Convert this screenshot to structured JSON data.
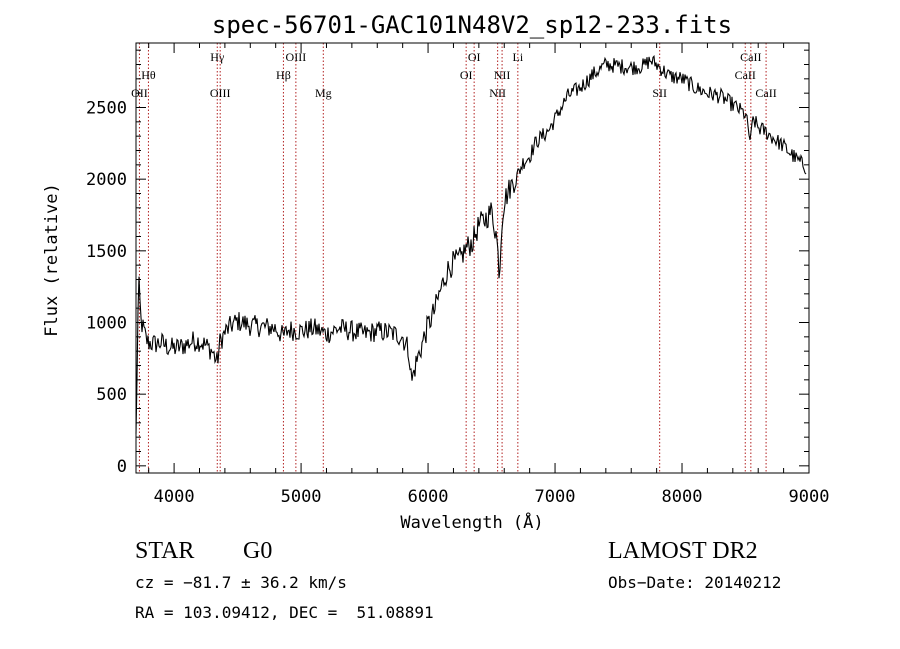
{
  "chart_data": {
    "type": "line",
    "title": "spec-56701-GAC101N48V2_sp12-233.fits",
    "xlabel": "Wavelength (Å)",
    "ylabel": "Flux (relative)",
    "xlim": [
      3700,
      9000
    ],
    "ylim": [
      -50,
      2950
    ],
    "x_ticks": [
      4000,
      5000,
      6000,
      7000,
      8000,
      9000
    ],
    "y_ticks": [
      0,
      500,
      1000,
      1500,
      2000,
      2500
    ],
    "grid": false,
    "series": [
      {
        "x": [
          3700,
          3720,
          3740,
          3760,
          3780,
          3800,
          3850,
          3900,
          3950,
          4000,
          4050,
          4100,
          4150,
          4200,
          4250,
          4300,
          4340,
          4360,
          4400,
          4450,
          4500,
          4600,
          4700,
          4800,
          4861,
          4900,
          5000,
          5100,
          5200,
          5300,
          5400,
          5500,
          5600,
          5700,
          5800,
          5850,
          5870,
          5900,
          5950,
          6000,
          6050,
          6100,
          6150,
          6200,
          6250,
          6300,
          6350,
          6400,
          6450,
          6500,
          6540,
          6563,
          6580,
          6600,
          6650,
          6700,
          6750,
          6800,
          6850,
          6900,
          6950,
          7000,
          7100,
          7200,
          7300,
          7400,
          7500,
          7600,
          7700,
          7750,
          7800,
          7850,
          7900,
          8000,
          8100,
          8200,
          8300,
          8400,
          8500,
          8540,
          8560,
          8600,
          8660,
          8700,
          8800,
          8900,
          8980
        ],
        "values": [
          200,
          1300,
          1000,
          950,
          880,
          860,
          850,
          860,
          830,
          820,
          830,
          850,
          870,
          870,
          840,
          800,
          720,
          860,
          930,
          980,
          1010,
          980,
          970,
          960,
          900,
          950,
          940,
          960,
          920,
          960,
          940,
          920,
          940,
          930,
          900,
          800,
          580,
          700,
          840,
          980,
          1080,
          1230,
          1360,
          1420,
          1440,
          1520,
          1560,
          1680,
          1720,
          1780,
          1600,
          1330,
          1700,
          1850,
          1950,
          2020,
          2120,
          2160,
          2260,
          2300,
          2340,
          2420,
          2580,
          2640,
          2730,
          2800,
          2790,
          2780,
          2790,
          2830,
          2800,
          2760,
          2720,
          2700,
          2640,
          2600,
          2580,
          2520,
          2450,
          2260,
          2420,
          2360,
          2330,
          2300,
          2230,
          2140,
          2080
        ]
      }
    ],
    "lines": [
      {
        "label": "OII",
        "wavelength": 3727,
        "label_row": 2
      },
      {
        "label": "Hθ",
        "wavelength": 3798,
        "label_row": 1
      },
      {
        "label": "Hγ",
        "wavelength": 4340,
        "label_row": 0
      },
      {
        "label": "OIII",
        "wavelength": 4363,
        "label_row": 2
      },
      {
        "label": "Hβ",
        "wavelength": 4861,
        "label_row": 1
      },
      {
        "label": "OIII",
        "wavelength": 4959,
        "label_row": 0
      },
      {
        "label": "Mg",
        "wavelength": 5175,
        "label_row": 2
      },
      {
        "label": "OI",
        "wavelength": 6300,
        "label_row": 1
      },
      {
        "label": "OI",
        "wavelength": 6363,
        "label_row": 0
      },
      {
        "label": "NII",
        "wavelength": 6548,
        "label_row": 2
      },
      {
        "label": "NII",
        "wavelength": 6583,
        "label_row": 1
      },
      {
        "label": "Li",
        "wavelength": 6707,
        "label_row": 0
      },
      {
        "label": "SII",
        "wavelength": 7824,
        "label_row": 2
      },
      {
        "label": "CaII",
        "wavelength": 8498,
        "label_row": 1
      },
      {
        "label": "CaII",
        "wavelength": 8542,
        "label_row": 0
      },
      {
        "label": "CaII",
        "wavelength": 8662,
        "label_row": 2
      }
    ]
  },
  "info": {
    "object_class": "STAR",
    "subclass": "G0",
    "survey": "LAMOST DR2",
    "cz": "cz = −81.7 ± 36.2 km/s",
    "obs_date": "Obs−Date: 20140212",
    "coords": "RA = 103.09412, DEC =  51.08891"
  },
  "colors": {
    "spectrum": "#000000",
    "line_marker": "#b22222",
    "axis": "#000000",
    "background": "#ffffff"
  }
}
